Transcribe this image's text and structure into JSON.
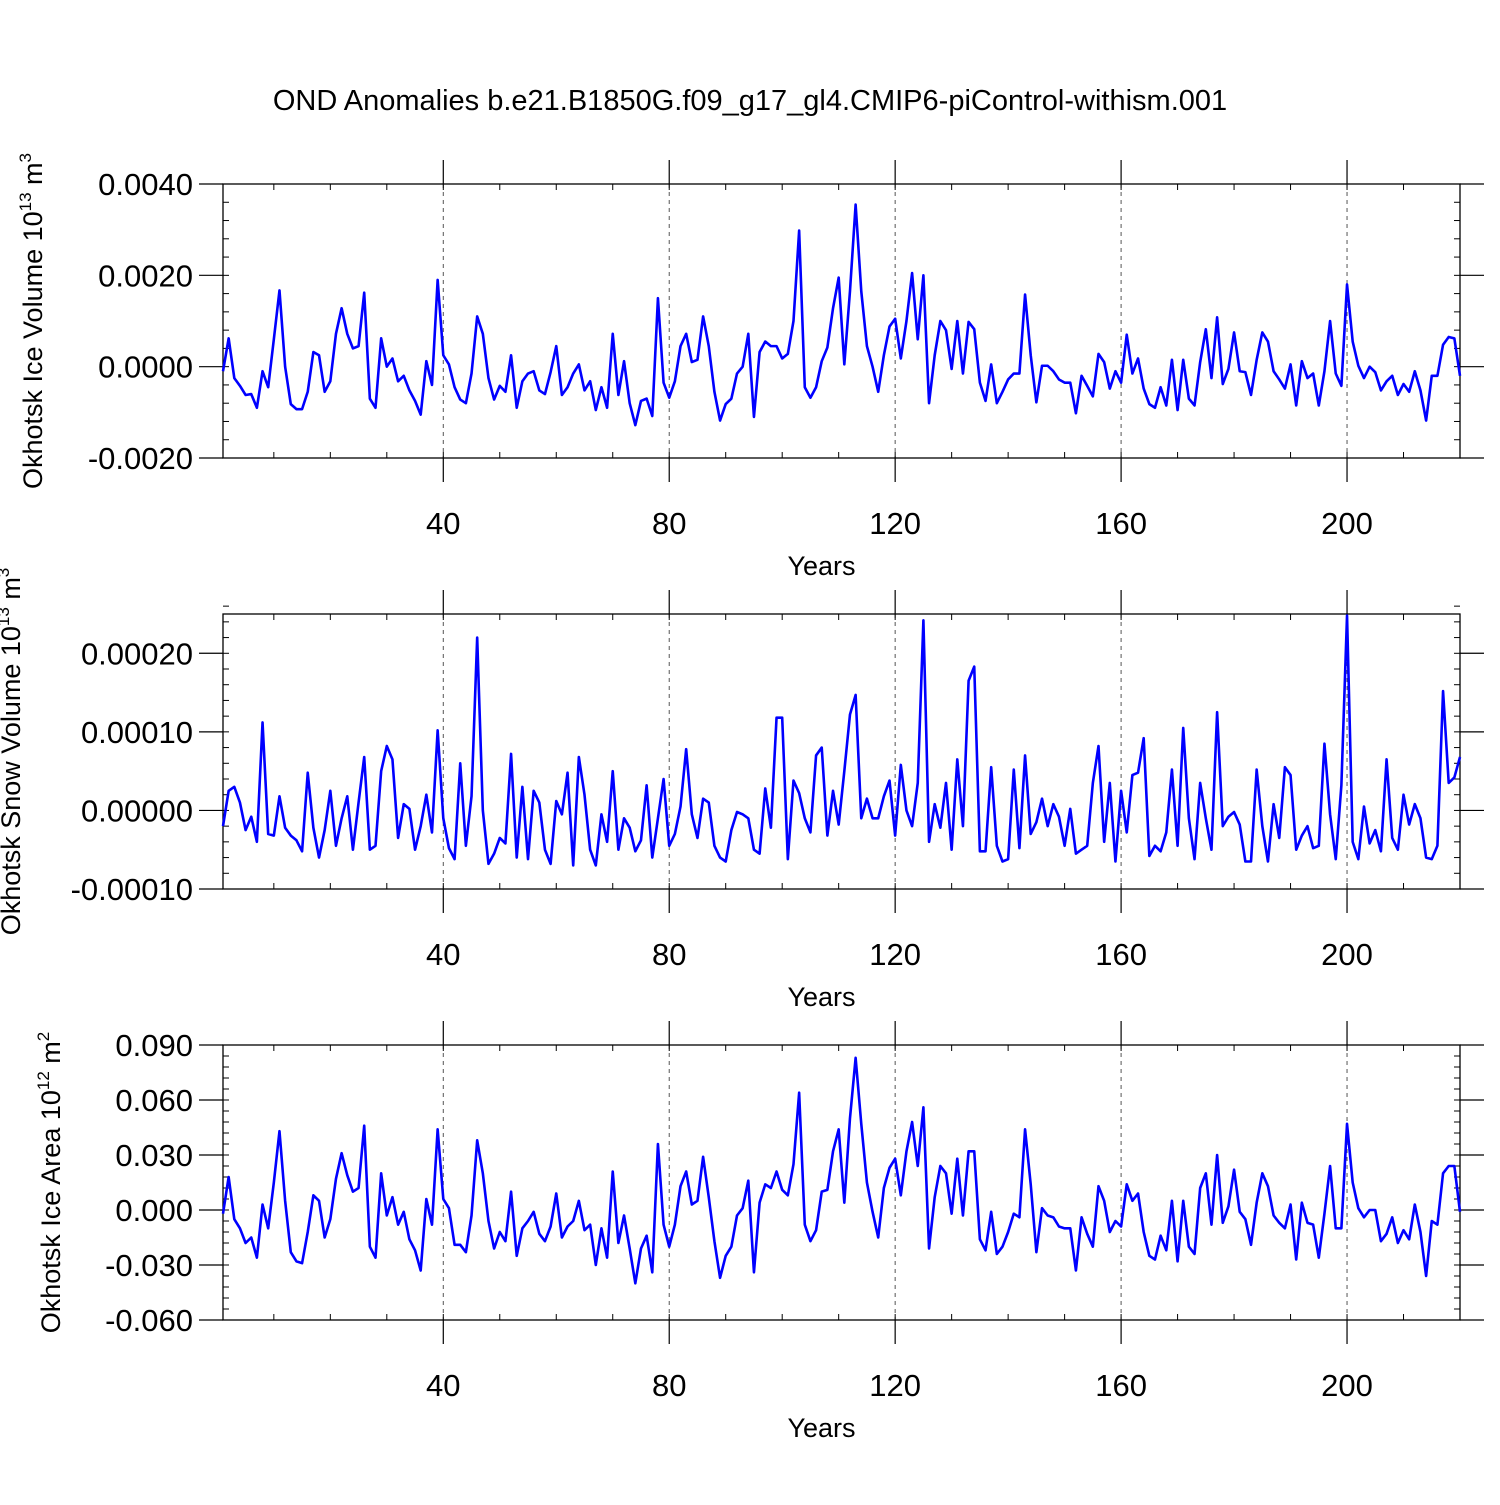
{
  "title": "OND Anomalies b.e21.B1850G.f09_g17_gl4.CMIP6-piControl-withism.001",
  "line_color": "#0000ff",
  "chart_data": [
    {
      "type": "line",
      "title": "",
      "xlabel": "Years",
      "ylabel": {
        "prefix": "Okhotsk Ice Volume 10",
        "exponent": "13",
        "unit": "m",
        "unit_exponent": "3"
      },
      "xlim": [
        1,
        220
      ],
      "ylim": [
        -0.002,
        0.004
      ],
      "grid": "dashed vertical lines at major x ticks",
      "x_ticks": [
        40,
        80,
        120,
        160,
        200
      ],
      "x_tick_labels": [
        "40",
        "80",
        "120",
        "160",
        "200"
      ],
      "y_ticks": [
        -0.002,
        0.0,
        0.002,
        0.004
      ],
      "y_tick_labels": [
        "-0.0020",
        "0.0000",
        "0.0020",
        "0.0040"
      ],
      "y_minor_step": 0.0004,
      "x_start": 1,
      "series": [
        {
          "values": [
            -0.0001,
            0.00062,
            -0.00025,
            -0.00042,
            -0.00062,
            -0.0006,
            -0.0009,
            -0.0001,
            -0.00045,
            0.0006,
            0.00167,
            0.0,
            -0.00082,
            -0.00093,
            -0.00093,
            -0.00055,
            0.00032,
            0.00025,
            -0.00055,
            -0.00032,
            0.00072,
            0.00128,
            0.00072,
            0.0004,
            0.00045,
            0.00162,
            -0.0007,
            -0.0009,
            0.00062,
            0.0,
            0.00018,
            -0.00032,
            -0.0002,
            -0.00052,
            -0.00075,
            -0.00105,
            0.00012,
            -0.0004,
            0.0019,
            0.00025,
            5e-05,
            -0.00045,
            -0.00072,
            -0.0008,
            -0.00015,
            0.0011,
            0.00072,
            -0.00025,
            -0.00072,
            -0.00042,
            -0.00055,
            0.00025,
            -0.0009,
            -0.00032,
            -0.00015,
            -0.0001,
            -0.00052,
            -0.0006,
            -0.00012,
            0.00045,
            -0.00062,
            -0.00045,
            -0.00015,
            5e-05,
            -0.00052,
            -0.00032,
            -0.00095,
            -0.00045,
            -0.0009,
            0.00072,
            -0.00062,
            0.00012,
            -0.0008,
            -0.00128,
            -0.00075,
            -0.0007,
            -0.00108,
            0.0015,
            -0.00035,
            -0.00068,
            -0.00032,
            0.00045,
            0.00072,
            0.0001,
            0.00015,
            0.0011,
            0.00045,
            -0.00055,
            -0.00118,
            -0.00082,
            -0.0007,
            -0.00015,
            0.0,
            0.00072,
            -0.0011,
            0.00032,
            0.00055,
            0.00045,
            0.00045,
            0.00018,
            0.00028,
            0.001,
            0.00298,
            -0.00045,
            -0.00068,
            -0.00045,
            0.00012,
            0.00042,
            0.00128,
            0.00195,
            5e-05,
            0.00165,
            0.00355,
            0.00165,
            0.00045,
            0.0,
            -0.00055,
            0.00025,
            0.00088,
            0.00105,
            0.00018,
            0.001,
            0.00205,
            0.0006,
            0.002,
            -0.0008,
            0.00025,
            0.001,
            0.0008,
            -5e-05,
            0.001,
            -0.00015,
            0.00098,
            0.00082,
            -0.00035,
            -0.00075,
            5e-05,
            -0.0008,
            -0.00055,
            -0.00028,
            -0.00015,
            -0.00015,
            0.00158,
            0.00025,
            -0.00078,
            2e-05,
            2e-05,
            -0.0001,
            -0.00028,
            -0.00035,
            -0.00035,
            -0.00102,
            -0.0002,
            -0.00042,
            -0.00065,
            0.00028,
            0.0001,
            -0.00048,
            -0.0001,
            -0.00035,
            0.0007,
            -0.00015,
            0.00018,
            -0.00048,
            -0.00082,
            -0.0009,
            -0.00045,
            -0.00085,
            0.00015,
            -0.00095,
            0.00015,
            -0.0007,
            -0.00085,
            0.0001,
            0.00082,
            -0.00025,
            0.00108,
            -0.00038,
            -5e-05,
            0.00075,
            -0.0001,
            -0.00012,
            -0.00062,
            0.00015,
            0.00075,
            0.00055,
            -0.0001,
            -0.00028,
            -0.00048,
            5e-05,
            -0.00085,
            0.00012,
            -0.00025,
            -0.00015,
            -0.00085,
            -0.0001,
            0.001,
            -0.00015,
            -0.00042,
            0.0018,
            0.00055,
            2e-05,
            -0.00025,
            0.0,
            -0.00012,
            -0.00052,
            -0.00032,
            -0.0002,
            -0.00062,
            -0.00038,
            -0.00055,
            -0.0001,
            -0.00052,
            -0.00118,
            -0.0002,
            -0.0002,
            0.00048,
            0.00065,
            0.00062,
            -0.0002
          ]
        }
      ]
    },
    {
      "type": "line",
      "title": "",
      "xlabel": "Years",
      "ylabel": {
        "prefix": "Okhotsk Snow Volume 10",
        "exponent": "13",
        "unit": "m",
        "unit_exponent": "3"
      },
      "xlim": [
        1,
        220
      ],
      "ylim": [
        -0.0001,
        0.00025
      ],
      "grid": "dashed vertical lines at major x ticks",
      "x_ticks": [
        40,
        80,
        120,
        160,
        200
      ],
      "x_tick_labels": [
        "40",
        "80",
        "120",
        "160",
        "200"
      ],
      "y_ticks": [
        -0.0001,
        0.0,
        0.0001,
        0.0002
      ],
      "y_tick_labels": [
        "-0.00010",
        "0.00000",
        "0.00010",
        "0.00020"
      ],
      "y_minor_step": 2e-05,
      "x_start": 1,
      "series": [
        {
          "values": [
            -2e-05,
            2.5e-05,
            3e-05,
            1e-05,
            -2.5e-05,
            -8e-06,
            -4e-05,
            0.000112,
            -3e-05,
            -3.2e-05,
            1.8e-05,
            -2.2e-05,
            -3.2e-05,
            -3.8e-05,
            -5.2e-05,
            4.8e-05,
            -2.2e-05,
            -6e-05,
            -2.5e-05,
            2.5e-05,
            -4.5e-05,
            -1e-05,
            1.8e-05,
            -5e-05,
            1e-05,
            6.8e-05,
            -5e-05,
            -4.5e-05,
            5e-05,
            8.2e-05,
            6.5e-05,
            -3.5e-05,
            8e-06,
            2e-06,
            -5e-05,
            -2e-05,
            2e-05,
            -2.8e-05,
            0.000102,
            -1e-05,
            -4.8e-05,
            -6.2e-05,
            6e-05,
            -4.5e-05,
            1.8e-05,
            0.00022,
            0.0,
            -6.8e-05,
            -5.5e-05,
            -3.5e-05,
            -4.2e-05,
            7.2e-05,
            -6e-05,
            3e-05,
            -6.2e-05,
            2.5e-05,
            1e-05,
            -5e-05,
            -6.8e-05,
            1.2e-05,
            -5e-06,
            4.8e-05,
            -7e-05,
            6.8e-05,
            2e-05,
            -5e-05,
            -7e-05,
            -5e-06,
            -4e-05,
            5e-05,
            -5e-05,
            -1e-05,
            -2.2e-05,
            -5.2e-05,
            -3.8e-05,
            3.2e-05,
            -6e-05,
            -1e-05,
            4e-05,
            -4.5e-05,
            -3e-05,
            5e-06,
            7.8e-05,
            -5e-06,
            -3.5e-05,
            1.5e-05,
            1e-05,
            -4.5e-05,
            -6e-05,
            -6.5e-05,
            -2.5e-05,
            -2e-06,
            -5e-06,
            -1e-05,
            -5e-05,
            -5.5e-05,
            2.8e-05,
            -2.2e-05,
            0.000118,
            0.000118,
            -6.2e-05,
            3.8e-05,
            2.2e-05,
            -1e-05,
            -2.8e-05,
            7e-05,
            8e-05,
            -3.2e-05,
            2.5e-05,
            -1.8e-05,
            5e-05,
            0.000122,
            0.000147,
            -1e-05,
            1.5e-05,
            -1e-05,
            -1e-05,
            1.8e-05,
            3.8e-05,
            -3.2e-05,
            5.8e-05,
            0.0,
            -2e-05,
            3.5e-05,
            0.000242,
            -4e-05,
            8e-06,
            -2.2e-05,
            3.5e-05,
            -5e-05,
            6.5e-05,
            -2e-05,
            0.000165,
            0.000183,
            -5.2e-05,
            -5.2e-05,
            5.5e-05,
            -4.5e-05,
            -6.5e-05,
            -6.2e-05,
            5.2e-05,
            -4.8e-05,
            7e-05,
            -3e-05,
            -1.5e-05,
            1.5e-05,
            -2e-05,
            8e-06,
            -8e-06,
            -4.5e-05,
            2e-06,
            -5.5e-05,
            -5e-05,
            -4.5e-05,
            3.5e-05,
            8.2e-05,
            -4e-05,
            3.5e-05,
            -6.5e-05,
            2.5e-05,
            -2.8e-05,
            4.5e-05,
            4.8e-05,
            9.2e-05,
            -5.8e-05,
            -4.5e-05,
            -5.2e-05,
            -2.8e-05,
            5.2e-05,
            -4.5e-05,
            0.000105,
            -1e-05,
            -6.2e-05,
            3.5e-05,
            -1e-05,
            -5e-05,
            0.000125,
            -2e-05,
            -8e-06,
            -2e-06,
            -1.8e-05,
            -6.5e-05,
            -6.5e-05,
            5.2e-05,
            -2e-05,
            -6.5e-05,
            8e-06,
            -3.5e-05,
            5.5e-05,
            4.5e-05,
            -5e-05,
            -3.2e-05,
            -2e-05,
            -4.8e-05,
            -4.5e-05,
            8.5e-05,
            -5e-06,
            -6.2e-05,
            3.2e-05,
            0.000248,
            -4e-05,
            -6.2e-05,
            5e-06,
            -4.2e-05,
            -2.5e-05,
            -5.2e-05,
            6.5e-05,
            -3.5e-05,
            -5e-05,
            2e-05,
            -1.8e-05,
            8e-06,
            -1e-05,
            -6e-05,
            -6.2e-05,
            -4.5e-05,
            0.000152,
            3.5e-05,
            4.2e-05,
            6.8e-05
          ]
        }
      ]
    },
    {
      "type": "line",
      "title": "",
      "xlabel": "Years",
      "ylabel": {
        "prefix": "Okhotsk Ice Area 10",
        "exponent": "12",
        "unit": "m",
        "unit_exponent": "2"
      },
      "xlim": [
        1,
        220
      ],
      "ylim": [
        -0.06,
        0.09
      ],
      "grid": "dashed vertical lines at major x ticks",
      "x_ticks": [
        40,
        80,
        120,
        160,
        200
      ],
      "x_tick_labels": [
        "40",
        "80",
        "120",
        "160",
        "200"
      ],
      "y_ticks": [
        -0.06,
        -0.03,
        0.0,
        0.03,
        0.06,
        0.09
      ],
      "y_tick_labels": [
        "-0.060",
        "-0.030",
        "0.000",
        "0.030",
        "0.060",
        "0.090"
      ],
      "y_minor_step": 0.006,
      "x_start": 1,
      "series": [
        {
          "values": [
            -0.002,
            0.018,
            -0.005,
            -0.01,
            -0.018,
            -0.015,
            -0.026,
            0.003,
            -0.01,
            0.015,
            0.043,
            0.005,
            -0.023,
            -0.028,
            -0.029,
            -0.012,
            0.008,
            0.005,
            -0.015,
            -0.005,
            0.017,
            0.031,
            0.019,
            0.01,
            0.012,
            0.046,
            -0.02,
            -0.026,
            0.02,
            -0.003,
            0.007,
            -0.008,
            -0.001,
            -0.016,
            -0.022,
            -0.033,
            0.006,
            -0.008,
            0.044,
            0.006,
            0.001,
            -0.019,
            -0.019,
            -0.023,
            -0.003,
            0.038,
            0.02,
            -0.006,
            -0.021,
            -0.012,
            -0.017,
            0.01,
            -0.025,
            -0.01,
            -0.006,
            -0.001,
            -0.013,
            -0.017,
            -0.009,
            0.009,
            -0.015,
            -0.009,
            -0.006,
            0.005,
            -0.011,
            -0.008,
            -0.03,
            -0.01,
            -0.026,
            0.021,
            -0.018,
            -0.003,
            -0.021,
            -0.04,
            -0.021,
            -0.014,
            -0.034,
            0.036,
            -0.008,
            -0.02,
            -0.008,
            0.013,
            0.021,
            0.003,
            0.005,
            0.029,
            0.007,
            -0.017,
            -0.037,
            -0.025,
            -0.02,
            -0.003,
            0.001,
            0.016,
            -0.034,
            0.004,
            0.014,
            0.012,
            0.021,
            0.011,
            0.008,
            0.025,
            0.064,
            -0.008,
            -0.017,
            -0.011,
            0.01,
            0.011,
            0.032,
            0.044,
            0.004,
            0.05,
            0.083,
            0.047,
            0.015,
            -0.001,
            -0.015,
            0.012,
            0.023,
            0.028,
            0.008,
            0.032,
            0.048,
            0.024,
            0.056,
            -0.021,
            0.007,
            0.024,
            0.02,
            -0.002,
            0.028,
            -0.003,
            0.032,
            0.032,
            -0.016,
            -0.022,
            -0.001,
            -0.024,
            -0.02,
            -0.012,
            -0.002,
            -0.004,
            0.044,
            0.014,
            -0.023,
            0.001,
            -0.003,
            -0.004,
            -0.009,
            -0.01,
            -0.01,
            -0.033,
            -0.004,
            -0.013,
            -0.02,
            0.013,
            0.005,
            -0.012,
            -0.006,
            -0.009,
            0.014,
            0.005,
            0.009,
            -0.012,
            -0.025,
            -0.027,
            -0.014,
            -0.022,
            0.005,
            -0.028,
            0.005,
            -0.02,
            -0.024,
            0.012,
            0.02,
            -0.008,
            0.03,
            -0.007,
            0.002,
            0.022,
            -0.001,
            -0.005,
            -0.019,
            0.004,
            0.02,
            0.013,
            -0.003,
            -0.007,
            -0.01,
            0.003,
            -0.027,
            0.004,
            -0.007,
            -0.008,
            -0.026,
            -0.002,
            0.024,
            -0.01,
            -0.01,
            0.047,
            0.015,
            0.001,
            -0.004,
            0.0,
            0.0,
            -0.017,
            -0.013,
            -0.004,
            -0.018,
            -0.011,
            -0.016,
            0.003,
            -0.012,
            -0.036,
            -0.006,
            -0.008,
            0.02,
            0.024,
            0.024,
            -0.001
          ]
        }
      ]
    }
  ]
}
